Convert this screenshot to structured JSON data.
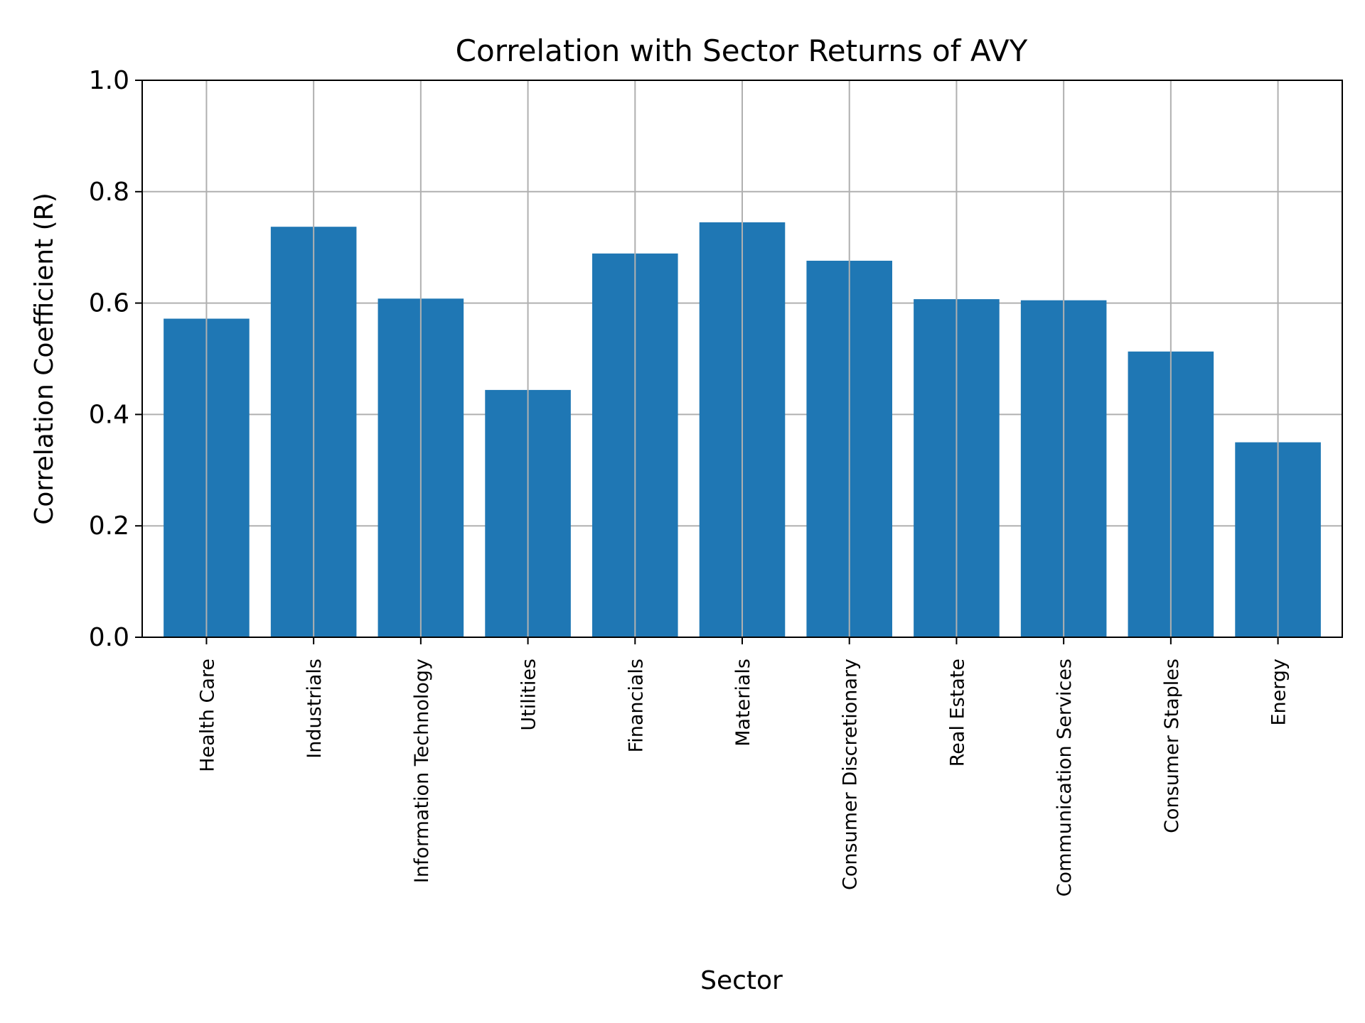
{
  "chart_data": {
    "type": "bar",
    "title": "Correlation with Sector Returns of AVY",
    "xlabel": "Sector",
    "ylabel": "Correlation Coefficient (R)",
    "categories": [
      "Health Care",
      "Industrials",
      "Information Technology",
      "Utilities",
      "Financials",
      "Materials",
      "Consumer Discretionary",
      "Real Estate",
      "Communication Services",
      "Consumer Staples",
      "Energy"
    ],
    "values": [
      0.572,
      0.737,
      0.608,
      0.444,
      0.689,
      0.745,
      0.676,
      0.607,
      0.605,
      0.513,
      0.35
    ],
    "ylim": [
      0,
      1.0
    ],
    "yticks": [
      "0.0",
      "0.2",
      "0.4",
      "0.6",
      "0.8",
      "1.0"
    ],
    "grid": true,
    "bar_color": "#1f77b4"
  }
}
